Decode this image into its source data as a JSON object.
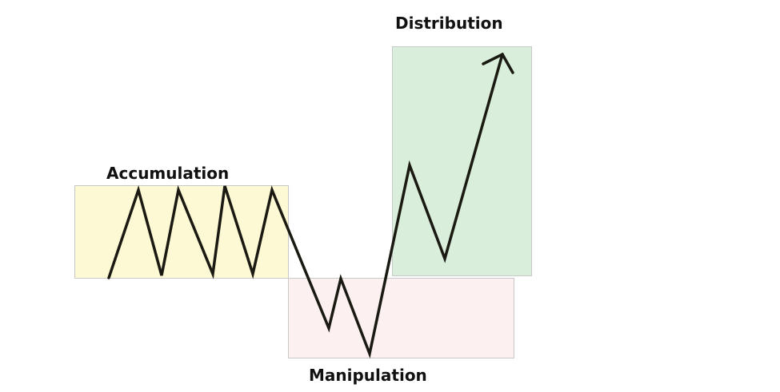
{
  "diagram": {
    "phases": [
      {
        "id": "accumulation",
        "label": "Accumulation",
        "color": "#fdf9d4"
      },
      {
        "id": "manipulation",
        "label": "Manipulation",
        "color": "#fcf0f1"
      },
      {
        "id": "distribution",
        "label": "Distribution",
        "color": "#d9eedb"
      }
    ],
    "line_color": "#1a1a12"
  }
}
